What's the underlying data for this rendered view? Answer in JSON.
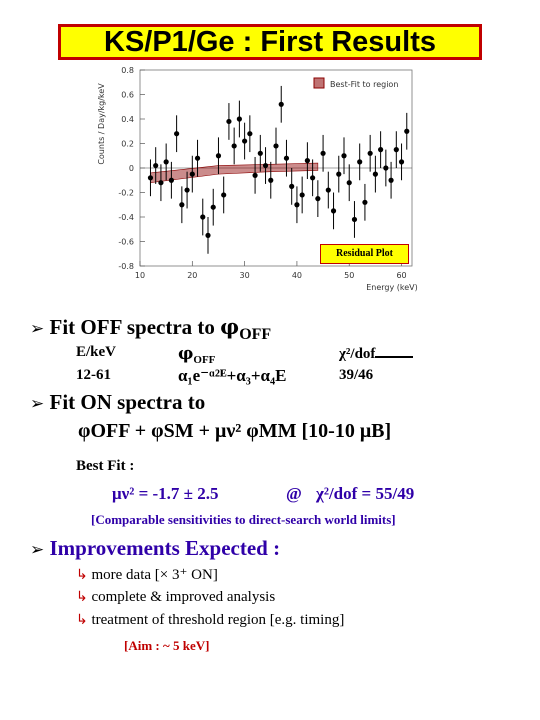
{
  "title": "KS/P1/Ge : First Results",
  "plot": {
    "y_axis_label": "Counts / Day/kg/keV",
    "x_axis_label": "Energy (keV)",
    "y_ticks": [
      "0.8",
      "0.6",
      "0.4",
      "0.2",
      "0",
      "-0.2",
      "-0.4",
      "-0.6",
      "-0.8"
    ],
    "x_ticks": [
      "10",
      "20",
      "30",
      "40",
      "50",
      "60"
    ],
    "legend_text": "Best-Fit to region",
    "residual_label": "Residual Plot",
    "fill_color": "#8b0000",
    "point_color": "#000000"
  },
  "chart_data": {
    "type": "scatter",
    "xlabel": "Energy (keV)",
    "ylabel": "Counts / Day/kg/keV",
    "xlim": [
      10,
      62
    ],
    "ylim": [
      -0.8,
      0.8
    ],
    "x": [
      12,
      13,
      14,
      15,
      16,
      17,
      18,
      19,
      20,
      21,
      22,
      23,
      24,
      25,
      26,
      27,
      28,
      29,
      30,
      31,
      32,
      33,
      34,
      35,
      36,
      37,
      38,
      39,
      40,
      41,
      42,
      43,
      44,
      45,
      46,
      47,
      48,
      49,
      50,
      51,
      52,
      53,
      54,
      55,
      56,
      57,
      58,
      59,
      60,
      61
    ],
    "y": [
      -0.08,
      0.02,
      -0.12,
      0.05,
      -0.1,
      0.28,
      -0.3,
      -0.18,
      -0.05,
      0.08,
      -0.4,
      -0.55,
      -0.32,
      0.1,
      -0.22,
      0.38,
      0.18,
      0.4,
      0.22,
      0.28,
      -0.06,
      0.12,
      0.02,
      -0.1,
      0.18,
      0.52,
      0.08,
      -0.15,
      -0.3,
      -0.22,
      0.06,
      -0.08,
      -0.25,
      0.12,
      -0.18,
      -0.35,
      -0.05,
      0.1,
      -0.12,
      -0.42,
      0.05,
      -0.28,
      0.12,
      -0.05,
      0.15,
      0.0,
      -0.1,
      0.15,
      0.05,
      0.3
    ],
    "yerr": 0.15,
    "fit_band": [
      [
        12,
        -0.12,
        -0.04
      ],
      [
        25,
        -0.05,
        0.02
      ],
      [
        35,
        -0.03,
        0.03
      ],
      [
        44,
        -0.02,
        0.04
      ]
    ]
  },
  "section1": {
    "heading": "Fit OFF spectra to ",
    "heading_phi": "φ",
    "heading_sub": "OFF",
    "col1_header": "E/keV",
    "col1_value": "12-61",
    "col2_header_phi": "φ",
    "col2_header_sub": "OFF",
    "col2_formula": "α₁e⁻ᵅ²ᴱ+α₃+α₄E",
    "col3_header": "χ²/dof",
    "col3_value": "39/46"
  },
  "section2": {
    "heading": "Fit ON spectra to",
    "formula": "φOFF + φSM + μν² φMM [10-10 μB]",
    "best_fit_label": "Best Fit :",
    "best_fit_value": "μν² = -1.7 ± 2.5",
    "at": "@",
    "chi2": "χ²/dof  = 55/49",
    "note": "[Comparable sensitivities to direct-search world limits]"
  },
  "section3": {
    "heading": "Improvements Expected :",
    "items": [
      "more data [× 3⁺ ON]",
      "complete & improved analysis",
      "treatment of threshold region [e.g. timing]"
    ],
    "aim": "[Aim :  ~ 5 keV]"
  }
}
